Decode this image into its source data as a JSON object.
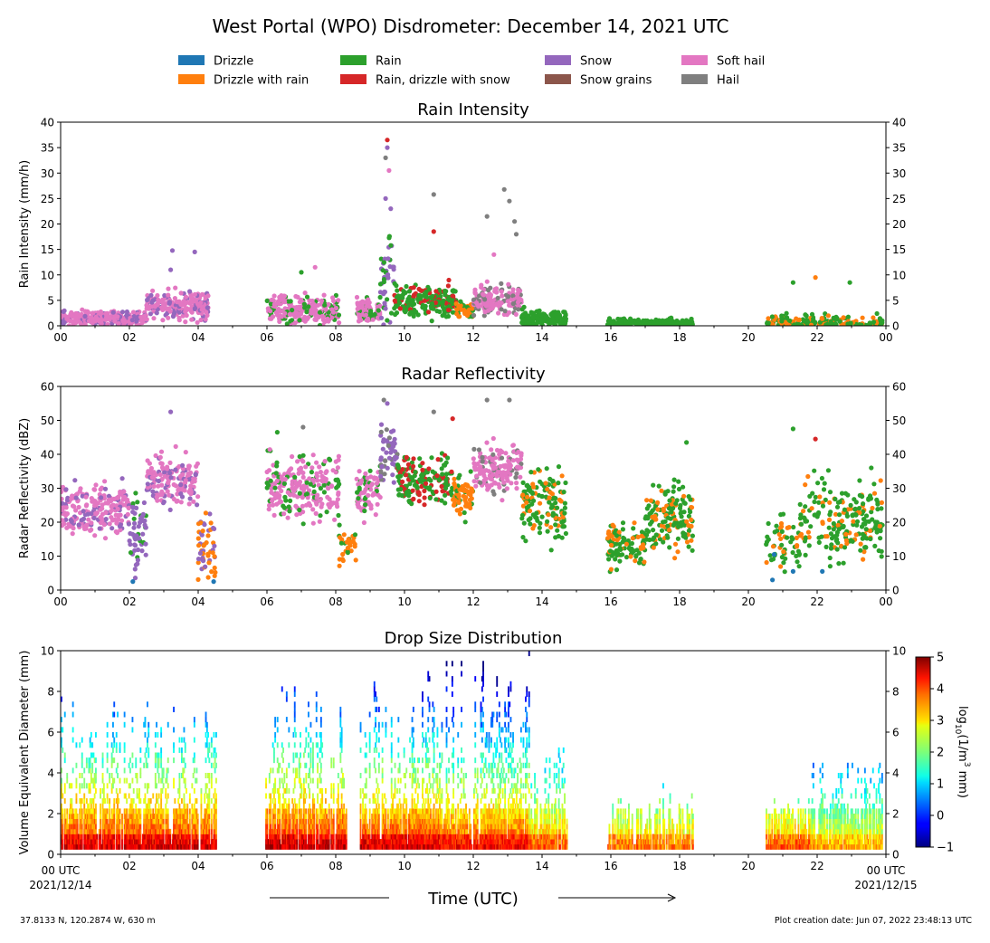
{
  "figure": {
    "title": "West Portal (WPO) Disdrometer: December 14, 2021 UTC",
    "xlabel": "Time (UTC)",
    "x_start_label": "00 UTC",
    "x_start_date": "2021/12/14",
    "x_end_label": "00 UTC",
    "x_end_date": "2021/12/15",
    "location": "37.8133 N, 120.2874 W, 630 m",
    "creation": "Plot creation date: Jun 07, 2022 23:48:13 UTC"
  },
  "legend": [
    {
      "name": "Drizzle",
      "color": "#1f77b4"
    },
    {
      "name": "Drizzle with rain",
      "color": "#ff7f0e"
    },
    {
      "name": "Rain",
      "color": "#2ca02c"
    },
    {
      "name": "Rain, drizzle with snow",
      "color": "#d62728"
    },
    {
      "name": "Snow",
      "color": "#9467bd"
    },
    {
      "name": "Snow grains",
      "color": "#8c564b"
    },
    {
      "name": "Soft hail",
      "color": "#e377c2"
    },
    {
      "name": "Hail",
      "color": "#7f7f7f"
    }
  ],
  "colorbar": {
    "label": "log10(1/m3 mm)",
    "label_main": "log",
    "label_sub": "10",
    "label_rest": "(1/m",
    "label_sup": "3",
    "label_end": " mm)",
    "min": -1,
    "max": 5,
    "ticks": [
      "5",
      "4",
      "3",
      "2",
      "1",
      "0",
      "−1"
    ]
  },
  "chart_data": [
    {
      "type": "scatter",
      "title": "Rain Intensity",
      "ylabel": "Rain Intensity (mm/h)",
      "xlim": [
        0,
        24
      ],
      "ylim": [
        0,
        40
      ],
      "yticks": [
        "0",
        "5",
        "10",
        "15",
        "20",
        "25",
        "30",
        "35",
        "40"
      ],
      "xticks": [
        "00",
        "02",
        "04",
        "06",
        "08",
        "10",
        "12",
        "14",
        "16",
        "18",
        "20",
        "22",
        "00"
      ],
      "segments": [
        {
          "start": 0.0,
          "end": 2.5,
          "base": 1.5,
          "spread": 2.5,
          "series": "Soft hail",
          "alt": "Snow",
          "density": 1.0
        },
        {
          "start": 2.5,
          "end": 4.3,
          "base": 4.0,
          "spread": 5,
          "series": "Soft hail",
          "alt": "Snow",
          "density": 1.0
        },
        {
          "start": 6.0,
          "end": 8.1,
          "base": 3.0,
          "spread": 5,
          "series": "Soft hail",
          "alt": "Rain",
          "density": 1.0
        },
        {
          "start": 8.6,
          "end": 9.3,
          "base": 3.0,
          "spread": 4,
          "series": "Soft hail",
          "alt": "Rain",
          "density": 1.0
        },
        {
          "start": 9.3,
          "end": 9.7,
          "base": 9.0,
          "spread": 14,
          "series": "Snow",
          "alt": "Rain",
          "density": 1.0
        },
        {
          "start": 9.7,
          "end": 11.5,
          "base": 5.0,
          "spread": 6,
          "series": "Rain",
          "alt": "Rain, drizzle with snow",
          "density": 1.0
        },
        {
          "start": 11.5,
          "end": 12.0,
          "base": 3.0,
          "spread": 3,
          "series": "Drizzle with rain",
          "alt": "Rain",
          "density": 1.0
        },
        {
          "start": 12.0,
          "end": 13.4,
          "base": 5.0,
          "spread": 5,
          "series": "Soft hail",
          "alt": "Hail",
          "density": 1.0
        },
        {
          "start": 13.4,
          "end": 14.7,
          "base": 1.5,
          "spread": 3,
          "series": "Rain",
          "alt": "Rain",
          "density": 1.0
        },
        {
          "start": 15.9,
          "end": 18.4,
          "base": 0.5,
          "spread": 1.5,
          "series": "Rain",
          "alt": "Rain",
          "density": 0.8
        },
        {
          "start": 20.5,
          "end": 23.9,
          "base": 0.5,
          "spread": 3,
          "series": "Rain",
          "alt": "Drizzle with rain",
          "density": 0.5
        }
      ],
      "points": [
        {
          "x": 9.5,
          "y": 36.5,
          "series": "Rain, drizzle with snow"
        },
        {
          "x": 9.5,
          "y": 35.0,
          "series": "Snow"
        },
        {
          "x": 9.45,
          "y": 33.0,
          "series": "Hail"
        },
        {
          "x": 9.55,
          "y": 30.5,
          "series": "Soft hail"
        },
        {
          "x": 9.45,
          "y": 25.0,
          "series": "Snow"
        },
        {
          "x": 9.6,
          "y": 23.0,
          "series": "Snow"
        },
        {
          "x": 10.85,
          "y": 25.8,
          "series": "Hail"
        },
        {
          "x": 10.85,
          "y": 18.5,
          "series": "Rain, drizzle with snow"
        },
        {
          "x": 12.4,
          "y": 21.5,
          "series": "Hail"
        },
        {
          "x": 12.9,
          "y": 26.8,
          "series": "Hail"
        },
        {
          "x": 13.05,
          "y": 24.5,
          "series": "Hail"
        },
        {
          "x": 13.2,
          "y": 20.5,
          "series": "Hail"
        },
        {
          "x": 13.25,
          "y": 18.0,
          "series": "Hail"
        },
        {
          "x": 3.25,
          "y": 14.8,
          "series": "Snow"
        },
        {
          "x": 3.9,
          "y": 14.5,
          "series": "Snow"
        },
        {
          "x": 3.2,
          "y": 11.0,
          "series": "Snow"
        },
        {
          "x": 7.4,
          "y": 11.5,
          "series": "Soft hail"
        },
        {
          "x": 7.0,
          "y": 10.5,
          "series": "Rain"
        },
        {
          "x": 12.6,
          "y": 14.0,
          "series": "Soft hail"
        },
        {
          "x": 21.95,
          "y": 9.5,
          "series": "Drizzle with rain"
        },
        {
          "x": 22.95,
          "y": 8.5,
          "series": "Rain"
        },
        {
          "x": 21.3,
          "y": 8.5,
          "series": "Rain"
        }
      ]
    },
    {
      "type": "scatter",
      "title": "Radar Reflectivity",
      "ylabel": "Radar Reflectivity (dBZ)",
      "xlim": [
        0,
        24
      ],
      "ylim": [
        0,
        60
      ],
      "yticks": [
        "0",
        "10",
        "20",
        "30",
        "40",
        "50",
        "60"
      ],
      "xticks": [
        "00",
        "02",
        "04",
        "06",
        "08",
        "10",
        "12",
        "14",
        "16",
        "18",
        "20",
        "22",
        "00"
      ],
      "segments": [
        {
          "start": 0.0,
          "end": 2.0,
          "base": 24,
          "spread": 14,
          "series": "Soft hail",
          "alt": "Snow",
          "density": 1.0
        },
        {
          "start": 2.0,
          "end": 2.5,
          "base": 17,
          "spread": 18,
          "series": "Snow",
          "alt": "Rain",
          "density": 1.0
        },
        {
          "start": 2.5,
          "end": 4.0,
          "base": 32,
          "spread": 14,
          "series": "Soft hail",
          "alt": "Snow",
          "density": 1.0
        },
        {
          "start": 4.0,
          "end": 4.5,
          "base": 12,
          "spread": 18,
          "series": "Drizzle with rain",
          "alt": "Snow",
          "density": 1.0
        },
        {
          "start": 6.0,
          "end": 8.1,
          "base": 30,
          "spread": 16,
          "series": "Soft hail",
          "alt": "Rain",
          "density": 1.0
        },
        {
          "start": 8.1,
          "end": 8.6,
          "base": 12,
          "spread": 12,
          "series": "Drizzle with rain",
          "alt": "Rain",
          "density": 0.6
        },
        {
          "start": 8.6,
          "end": 9.3,
          "base": 29,
          "spread": 12,
          "series": "Soft hail",
          "alt": "Rain",
          "density": 1.0
        },
        {
          "start": 9.3,
          "end": 9.8,
          "base": 40,
          "spread": 16,
          "series": "Snow",
          "alt": "Hail",
          "density": 1.0
        },
        {
          "start": 9.8,
          "end": 11.4,
          "base": 32,
          "spread": 12,
          "series": "Rain",
          "alt": "Rain, drizzle with snow",
          "density": 1.0
        },
        {
          "start": 11.4,
          "end": 12.0,
          "base": 28,
          "spread": 12,
          "series": "Drizzle with rain",
          "alt": "Rain",
          "density": 1.0
        },
        {
          "start": 12.0,
          "end": 13.4,
          "base": 36,
          "spread": 14,
          "series": "Soft hail",
          "alt": "Hail",
          "density": 1.0
        },
        {
          "start": 13.4,
          "end": 14.7,
          "base": 26,
          "spread": 20,
          "series": "Rain",
          "alt": "Drizzle with rain",
          "density": 1.0
        },
        {
          "start": 15.9,
          "end": 17.0,
          "base": 13,
          "spread": 12,
          "series": "Rain",
          "alt": "Drizzle with rain",
          "density": 0.8
        },
        {
          "start": 17.0,
          "end": 18.4,
          "base": 22,
          "spread": 18,
          "series": "Rain",
          "alt": "Drizzle with rain",
          "density": 1.0
        },
        {
          "start": 20.5,
          "end": 21.5,
          "base": 14,
          "spread": 14,
          "series": "Rain",
          "alt": "Drizzle with rain",
          "density": 0.5
        },
        {
          "start": 21.5,
          "end": 23.9,
          "base": 20,
          "spread": 22,
          "series": "Rain",
          "alt": "Drizzle with rain",
          "density": 0.8
        }
      ],
      "points": [
        {
          "x": 9.4,
          "y": 56.0,
          "series": "Hail"
        },
        {
          "x": 9.5,
          "y": 55.0,
          "series": "Snow"
        },
        {
          "x": 12.4,
          "y": 56.0,
          "series": "Hail"
        },
        {
          "x": 13.05,
          "y": 56.0,
          "series": "Hail"
        },
        {
          "x": 10.85,
          "y": 52.5,
          "series": "Hail"
        },
        {
          "x": 11.4,
          "y": 50.5,
          "series": "Rain, drizzle with snow"
        },
        {
          "x": 3.2,
          "y": 52.5,
          "series": "Snow"
        },
        {
          "x": 7.05,
          "y": 48.0,
          "series": "Hail"
        },
        {
          "x": 6.3,
          "y": 46.5,
          "series": "Rain"
        },
        {
          "x": 21.3,
          "y": 47.5,
          "series": "Rain"
        },
        {
          "x": 21.95,
          "y": 44.5,
          "series": "Rain, drizzle with snow"
        },
        {
          "x": 18.2,
          "y": 43.5,
          "series": "Rain"
        },
        {
          "x": 4.45,
          "y": 2.5,
          "series": "Drizzle"
        },
        {
          "x": 2.1,
          "y": 2.5,
          "series": "Drizzle"
        },
        {
          "x": 20.7,
          "y": 3.0,
          "series": "Drizzle"
        },
        {
          "x": 21.3,
          "y": 5.5,
          "series": "Drizzle"
        },
        {
          "x": 22.15,
          "y": 5.5,
          "series": "Drizzle"
        },
        {
          "x": 20.75,
          "y": 10.5,
          "series": "Drizzle"
        }
      ]
    },
    {
      "type": "heatmap",
      "title": "Drop Size Distribution",
      "ylabel": "Volume Equivalent Diameter (mm)",
      "xlim": [
        0,
        24
      ],
      "ylim": [
        0,
        10
      ],
      "yticks": [
        "0",
        "2",
        "4",
        "6",
        "8",
        "10"
      ],
      "xticks": [
        "02",
        "04",
        "06",
        "08",
        "10",
        "12",
        "14",
        "16",
        "18",
        "20",
        "22"
      ],
      "colorbar_range": [
        -1,
        5
      ],
      "active_periods": [
        {
          "start": 0.0,
          "end": 4.5,
          "top": 7.5,
          "peak": 4.2
        },
        {
          "start": 5.95,
          "end": 8.3,
          "top": 8.0,
          "peak": 4.3
        },
        {
          "start": 8.7,
          "end": 11.0,
          "top": 9.5,
          "peak": 4.2
        },
        {
          "start": 11.0,
          "end": 13.6,
          "top": 10.0,
          "peak": 4.0
        },
        {
          "start": 13.6,
          "end": 14.7,
          "top": 6.5,
          "peak": 3.5
        },
        {
          "start": 15.9,
          "end": 18.4,
          "top": 3.0,
          "peak": 3.3
        },
        {
          "start": 20.5,
          "end": 21.8,
          "top": 2.5,
          "peak": 3.5
        },
        {
          "start": 21.8,
          "end": 23.9,
          "top": 4.8,
          "peak": 3.0
        }
      ]
    }
  ]
}
